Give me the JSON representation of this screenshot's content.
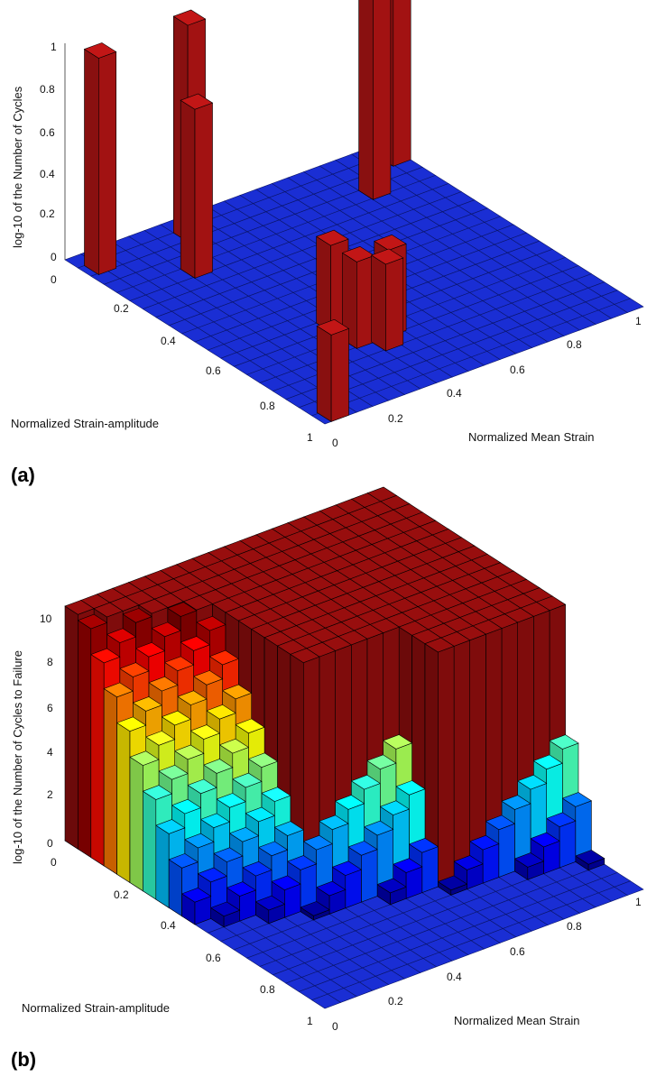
{
  "chart_data": [
    {
      "panel_label": "(a)",
      "type": "bar3d",
      "zlabel": "log-10 of the Number of Cycles",
      "xlabel": "Normalized Strain-amplitude",
      "ylabel": "Normalized Mean Strain",
      "ztick_labels": [
        "0",
        "0.2",
        "0.4",
        "0.6",
        "0.8",
        "1"
      ],
      "xtick_labels": [
        "0",
        "0.2",
        "0.4",
        "0.6",
        "0.8",
        "1"
      ],
      "ytick_labels": [
        "0",
        "0.2",
        "0.4",
        "0.6",
        "0.8",
        "1"
      ],
      "zlim": [
        0,
        1
      ],
      "xlim": [
        0,
        1
      ],
      "ylim": [
        0,
        1
      ],
      "grid_cells": 20,
      "base_color": "#1a2ed4",
      "bar_color": "#b01414",
      "bars": [
        {
          "strain_amplitude": 0.05,
          "mean_strain": 0.02,
          "value": 1.0
        },
        {
          "strain_amplitude": 0.2,
          "mean_strain": 0.2,
          "value": 0.78
        },
        {
          "strain_amplitude": 0.05,
          "mean_strain": 0.3,
          "value": 1.0
        },
        {
          "strain_amplitude": 0.6,
          "mean_strain": 0.3,
          "value": 0.4
        },
        {
          "strain_amplitude": 0.7,
          "mean_strain": 0.3,
          "value": 0.4
        },
        {
          "strain_amplitude": 0.75,
          "mean_strain": 0.35,
          "value": 0.4
        },
        {
          "strain_amplitude": 0.7,
          "mean_strain": 0.4,
          "value": 0.4
        },
        {
          "strain_amplitude": 0.95,
          "mean_strain": 0.02,
          "value": 0.4
        },
        {
          "strain_amplitude": 0.15,
          "mean_strain": 0.8,
          "value": 1.0
        },
        {
          "strain_amplitude": 0.05,
          "mean_strain": 1.0,
          "value": 1.0
        }
      ]
    },
    {
      "panel_label": "(b)",
      "type": "bar3d",
      "zlabel": "log-10 of the Number of Cycles to Failure",
      "xlabel": "Normalized Strain-amplitude",
      "ylabel": "Normalized Mean Strain",
      "ztick_labels": [
        "0",
        "2",
        "4",
        "6",
        "8",
        "10"
      ],
      "xtick_labels": [
        "0",
        "0.2",
        "0.4",
        "0.6",
        "0.8",
        "1"
      ],
      "ytick_labels": [
        "0",
        "0.2",
        "0.4",
        "0.6",
        "0.8",
        "1"
      ],
      "zlim": [
        0,
        10
      ],
      "xlim": [
        0,
        1
      ],
      "ylim": [
        0,
        1
      ],
      "grid_cells": 20,
      "colormap": "jet",
      "surface_description_values": {
        "saturated_region_value": 10,
        "low_region_value": 0
      }
    }
  ]
}
